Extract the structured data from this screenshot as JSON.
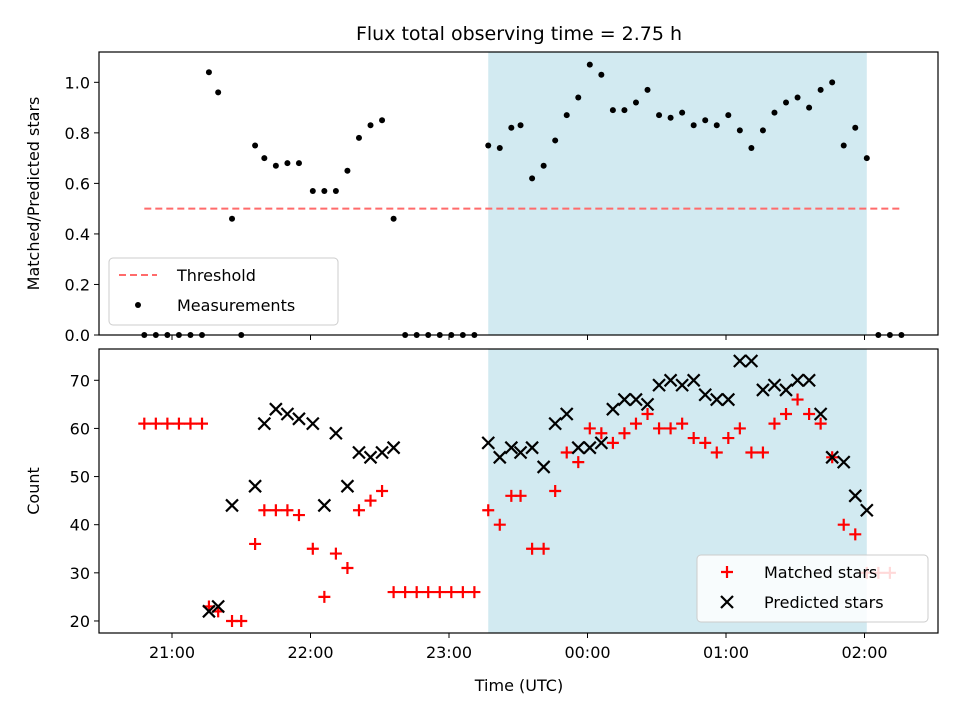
{
  "chart_data": [
    {
      "type": "scatter",
      "title": "Flux total observing time = 2.75 h",
      "xlabel": "",
      "ylabel": "Matched/Predicted stars",
      "ylim": [
        0,
        1.12
      ],
      "yticks": [
        "0.0",
        "0.2",
        "0.4",
        "0.6",
        "0.8",
        "1.0"
      ],
      "shaded_span": {
        "from": "23:17",
        "to": "02:01",
        "color": "#add8e6"
      },
      "legend": {
        "placement": "lower-left",
        "entries": [
          "Threshold",
          "Measurements"
        ]
      },
      "threshold": {
        "name": "Threshold",
        "value": 0.5,
        "x_from": "20:48",
        "x_to": "02:16",
        "color": "#ff6b6b"
      },
      "series": [
        {
          "name": "Measurements",
          "marker": "dot",
          "color": "#000000",
          "points": [
            [
              "20:48",
              0
            ],
            [
              "20:53",
              0
            ],
            [
              "20:58",
              0
            ],
            [
              "21:03",
              0
            ],
            [
              "21:08",
              0
            ],
            [
              "21:13",
              0
            ],
            [
              "21:16",
              1.04
            ],
            [
              "21:20",
              0.96
            ],
            [
              "21:26",
              0.46
            ],
            [
              "21:30",
              0
            ],
            [
              "21:36",
              0.75
            ],
            [
              "21:40",
              0.7
            ],
            [
              "21:45",
              0.67
            ],
            [
              "21:50",
              0.68
            ],
            [
              "21:55",
              0.68
            ],
            [
              "22:01",
              0.57
            ],
            [
              "22:06",
              0.57
            ],
            [
              "22:11",
              0.57
            ],
            [
              "22:16",
              0.65
            ],
            [
              "22:21",
              0.78
            ],
            [
              "22:26",
              0.83
            ],
            [
              "22:31",
              0.85
            ],
            [
              "22:36",
              0.46
            ],
            [
              "22:41",
              0
            ],
            [
              "22:46",
              0
            ],
            [
              "22:51",
              0
            ],
            [
              "22:56",
              0
            ],
            [
              "23:01",
              0
            ],
            [
              "23:06",
              0
            ],
            [
              "23:11",
              0
            ],
            [
              "23:17",
              0.75
            ],
            [
              "23:22",
              0.74
            ],
            [
              "23:27",
              0.82
            ],
            [
              "23:31",
              0.83
            ],
            [
              "23:36",
              0.62
            ],
            [
              "23:41",
              0.67
            ],
            [
              "23:46",
              0.77
            ],
            [
              "23:51",
              0.87
            ],
            [
              "23:56",
              0.94
            ],
            [
              "00:01",
              1.07
            ],
            [
              "00:06",
              1.03
            ],
            [
              "00:11",
              0.89
            ],
            [
              "00:16",
              0.89
            ],
            [
              "00:21",
              0.92
            ],
            [
              "00:26",
              0.97
            ],
            [
              "00:31",
              0.87
            ],
            [
              "00:36",
              0.86
            ],
            [
              "00:41",
              0.88
            ],
            [
              "00:46",
              0.83
            ],
            [
              "00:51",
              0.85
            ],
            [
              "00:56",
              0.83
            ],
            [
              "01:01",
              0.87
            ],
            [
              "01:06",
              0.81
            ],
            [
              "01:11",
              0.74
            ],
            [
              "01:16",
              0.81
            ],
            [
              "01:21",
              0.88
            ],
            [
              "01:26",
              0.92
            ],
            [
              "01:31",
              0.94
            ],
            [
              "01:36",
              0.9
            ],
            [
              "01:41",
              0.97
            ],
            [
              "01:46",
              1.0
            ],
            [
              "01:51",
              0.75
            ],
            [
              "01:56",
              0.82
            ],
            [
              "02:01",
              0.7
            ],
            [
              "02:06",
              0
            ],
            [
              "02:11",
              0
            ],
            [
              "02:16",
              0
            ]
          ]
        }
      ]
    },
    {
      "type": "scatter",
      "title": "",
      "xlabel": "Time (UTC)",
      "ylabel": "Count",
      "ylim": [
        17.5,
        76.5
      ],
      "yticks": [
        "20",
        "30",
        "40",
        "50",
        "60",
        "70"
      ],
      "xticks": [
        "21:00",
        "22:00",
        "23:00",
        "00:00",
        "01:00",
        "02:00"
      ],
      "shaded_span": {
        "from": "23:17",
        "to": "02:01",
        "color": "#add8e6"
      },
      "legend": {
        "placement": "lower-right",
        "entries": [
          "Matched stars",
          "Predicted stars"
        ]
      },
      "series": [
        {
          "name": "Matched stars",
          "marker": "plus",
          "color": "#ff0000",
          "points": [
            [
              "20:48",
              61
            ],
            [
              "20:53",
              61
            ],
            [
              "20:58",
              61
            ],
            [
              "21:03",
              61
            ],
            [
              "21:08",
              61
            ],
            [
              "21:13",
              61
            ],
            [
              "21:16",
              23
            ],
            [
              "21:20",
              22
            ],
            [
              "21:26",
              20
            ],
            [
              "21:30",
              20
            ],
            [
              "21:36",
              36
            ],
            [
              "21:40",
              43
            ],
            [
              "21:45",
              43
            ],
            [
              "21:50",
              43
            ],
            [
              "21:55",
              42
            ],
            [
              "22:01",
              35
            ],
            [
              "22:06",
              25
            ],
            [
              "22:11",
              34
            ],
            [
              "22:16",
              31
            ],
            [
              "22:21",
              43
            ],
            [
              "22:26",
              45
            ],
            [
              "22:31",
              47
            ],
            [
              "22:36",
              26
            ],
            [
              "22:41",
              26
            ],
            [
              "22:46",
              26
            ],
            [
              "22:51",
              26
            ],
            [
              "22:56",
              26
            ],
            [
              "23:01",
              26
            ],
            [
              "23:06",
              26
            ],
            [
              "23:11",
              26
            ],
            [
              "23:17",
              43
            ],
            [
              "23:22",
              40
            ],
            [
              "23:27",
              46
            ],
            [
              "23:31",
              46
            ],
            [
              "23:36",
              35
            ],
            [
              "23:41",
              35
            ],
            [
              "23:46",
              47
            ],
            [
              "23:51",
              55
            ],
            [
              "23:56",
              53
            ],
            [
              "00:01",
              60
            ],
            [
              "00:06",
              59
            ],
            [
              "00:11",
              57
            ],
            [
              "00:16",
              59
            ],
            [
              "00:21",
              61
            ],
            [
              "00:26",
              63
            ],
            [
              "00:31",
              60
            ],
            [
              "00:36",
              60
            ],
            [
              "00:41",
              61
            ],
            [
              "00:46",
              58
            ],
            [
              "00:51",
              57
            ],
            [
              "00:56",
              55
            ],
            [
              "01:01",
              58
            ],
            [
              "01:06",
              60
            ],
            [
              "01:11",
              55
            ],
            [
              "01:16",
              55
            ],
            [
              "01:21",
              61
            ],
            [
              "01:26",
              63
            ],
            [
              "01:31",
              66
            ],
            [
              "01:36",
              63
            ],
            [
              "01:41",
              61
            ],
            [
              "01:46",
              54
            ],
            [
              "01:51",
              40
            ],
            [
              "01:56",
              38
            ],
            [
              "02:01",
              30
            ],
            [
              "02:06",
              30
            ],
            [
              "02:11",
              30
            ]
          ]
        },
        {
          "name": "Predicted stars",
          "marker": "x",
          "color": "#000000",
          "points": [
            [
              "21:16",
              22
            ],
            [
              "21:20",
              23
            ],
            [
              "21:26",
              44
            ],
            [
              "21:36",
              48
            ],
            [
              "21:40",
              61
            ],
            [
              "21:45",
              64
            ],
            [
              "21:50",
              63
            ],
            [
              "21:55",
              62
            ],
            [
              "22:01",
              61
            ],
            [
              "22:06",
              44
            ],
            [
              "22:11",
              59
            ],
            [
              "22:16",
              48
            ],
            [
              "22:21",
              55
            ],
            [
              "22:26",
              54
            ],
            [
              "22:31",
              55
            ],
            [
              "22:36",
              56
            ],
            [
              "23:17",
              57
            ],
            [
              "23:22",
              54
            ],
            [
              "23:27",
              56
            ],
            [
              "23:31",
              55
            ],
            [
              "23:36",
              56
            ],
            [
              "23:41",
              52
            ],
            [
              "23:46",
              61
            ],
            [
              "23:51",
              63
            ],
            [
              "23:56",
              56
            ],
            [
              "00:01",
              56
            ],
            [
              "00:06",
              57
            ],
            [
              "00:11",
              64
            ],
            [
              "00:16",
              66
            ],
            [
              "00:21",
              66
            ],
            [
              "00:26",
              65
            ],
            [
              "00:31",
              69
            ],
            [
              "00:36",
              70
            ],
            [
              "00:41",
              69
            ],
            [
              "00:46",
              70
            ],
            [
              "00:51",
              67
            ],
            [
              "00:56",
              66
            ],
            [
              "01:01",
              66
            ],
            [
              "01:06",
              74
            ],
            [
              "01:11",
              74
            ],
            [
              "01:16",
              68
            ],
            [
              "01:21",
              69
            ],
            [
              "01:26",
              68
            ],
            [
              "01:31",
              70
            ],
            [
              "01:36",
              70
            ],
            [
              "01:41",
              63
            ],
            [
              "01:46",
              54
            ],
            [
              "01:51",
              53
            ],
            [
              "01:56",
              46
            ],
            [
              "02:01",
              43
            ]
          ]
        }
      ]
    }
  ]
}
